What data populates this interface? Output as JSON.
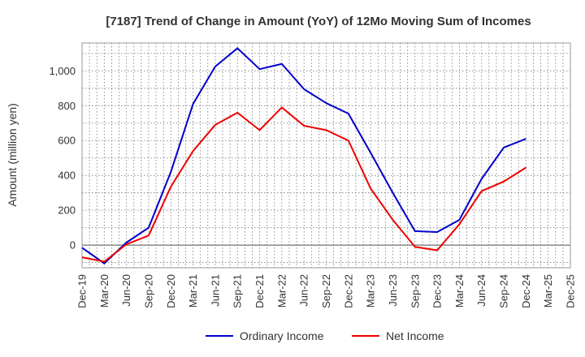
{
  "chart_data": {
    "type": "line",
    "title": "[7187]  Trend of Change in Amount (YoY) of 12Mo Moving Sum of Incomes",
    "ylabel": "Amount (million yen)",
    "xlabel": "",
    "ylim": [
      -130,
      1160
    ],
    "yticks": [
      0,
      200,
      400,
      600,
      800,
      1000
    ],
    "ytick_labels": [
      "0",
      "200",
      "400",
      "600",
      "800",
      "1,000"
    ],
    "xtick_labels": [
      "Dec-19",
      "Mar-20",
      "Jun-20",
      "Sep-20",
      "Dec-20",
      "Mar-21",
      "Jun-21",
      "Sep-21",
      "Dec-21",
      "Mar-22",
      "Jun-22",
      "Sep-22",
      "Dec-22",
      "Mar-23",
      "Jun-23",
      "Sep-23",
      "Dec-23",
      "Mar-24",
      "Jun-24",
      "Sep-24",
      "Dec-24",
      "Mar-25",
      "Dec-25"
    ],
    "x": [
      "Dec-19",
      "Mar-20",
      "Jun-20",
      "Sep-20",
      "Dec-20",
      "Mar-21",
      "Jun-21",
      "Sep-21",
      "Dec-21",
      "Mar-22",
      "Jun-22",
      "Sep-22",
      "Dec-22",
      "Mar-23",
      "Jun-23",
      "Sep-23",
      "Dec-23",
      "Mar-24",
      "Jun-24",
      "Sep-24",
      "Dec-24"
    ],
    "grid": true,
    "legend_position": "bottom",
    "series": [
      {
        "name": "Ordinary Income",
        "color": "#0000cc",
        "values": [
          -15,
          -105,
          15,
          100,
          420,
          810,
          1025,
          1130,
          1010,
          1040,
          895,
          815,
          755,
          530,
          300,
          80,
          75,
          145,
          380,
          560,
          610
        ]
      },
      {
        "name": "Net Income",
        "color": "#ee0000",
        "values": [
          -70,
          -95,
          5,
          55,
          335,
          540,
          690,
          760,
          660,
          790,
          685,
          660,
          600,
          325,
          145,
          -10,
          -30,
          120,
          310,
          365,
          445
        ]
      }
    ]
  }
}
